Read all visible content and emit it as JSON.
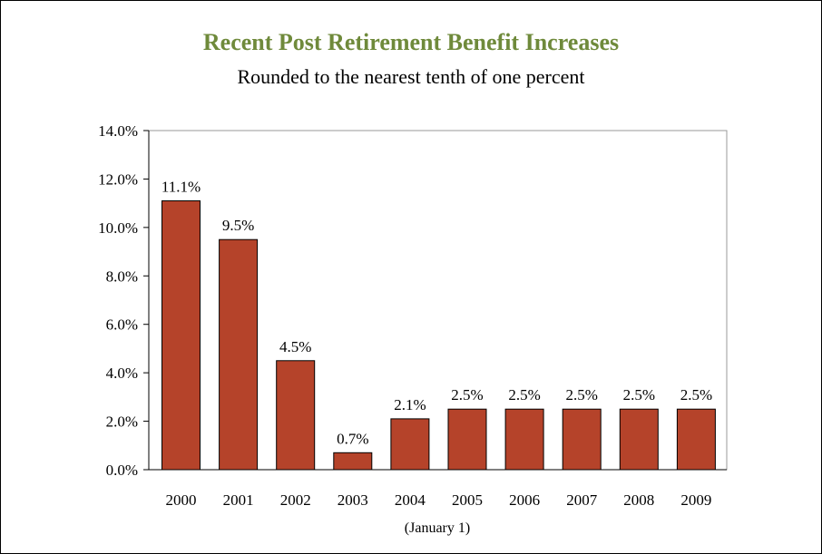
{
  "chart_data": {
    "type": "bar",
    "title": "Recent Post Retirement Benefit Increases",
    "subtitle": "Rounded to the nearest tenth of one percent",
    "xlabel": "(January 1)",
    "ylabel": "",
    "categories": [
      "2000",
      "2001",
      "2002",
      "2003",
      "2004",
      "2005",
      "2006",
      "2007",
      "2008",
      "2009"
    ],
    "values": [
      11.1,
      9.5,
      4.5,
      0.7,
      2.1,
      2.5,
      2.5,
      2.5,
      2.5,
      2.5
    ],
    "value_labels": [
      "11.1%",
      "9.5%",
      "4.5%",
      "0.7%",
      "2.1%",
      "2.5%",
      "2.5%",
      "2.5%",
      "2.5%",
      "2.5%"
    ],
    "ylim": [
      0,
      14
    ],
    "yticks": [
      0,
      2,
      4,
      6,
      8,
      10,
      12,
      14
    ],
    "ytick_labels": [
      "0.0%",
      "2.0%",
      "4.0%",
      "6.0%",
      "8.0%",
      "10.0%",
      "12.0%",
      "14.0%"
    ],
    "grid": false,
    "bar_color": "#b5432a",
    "title_color": "#6f8a3b"
  }
}
